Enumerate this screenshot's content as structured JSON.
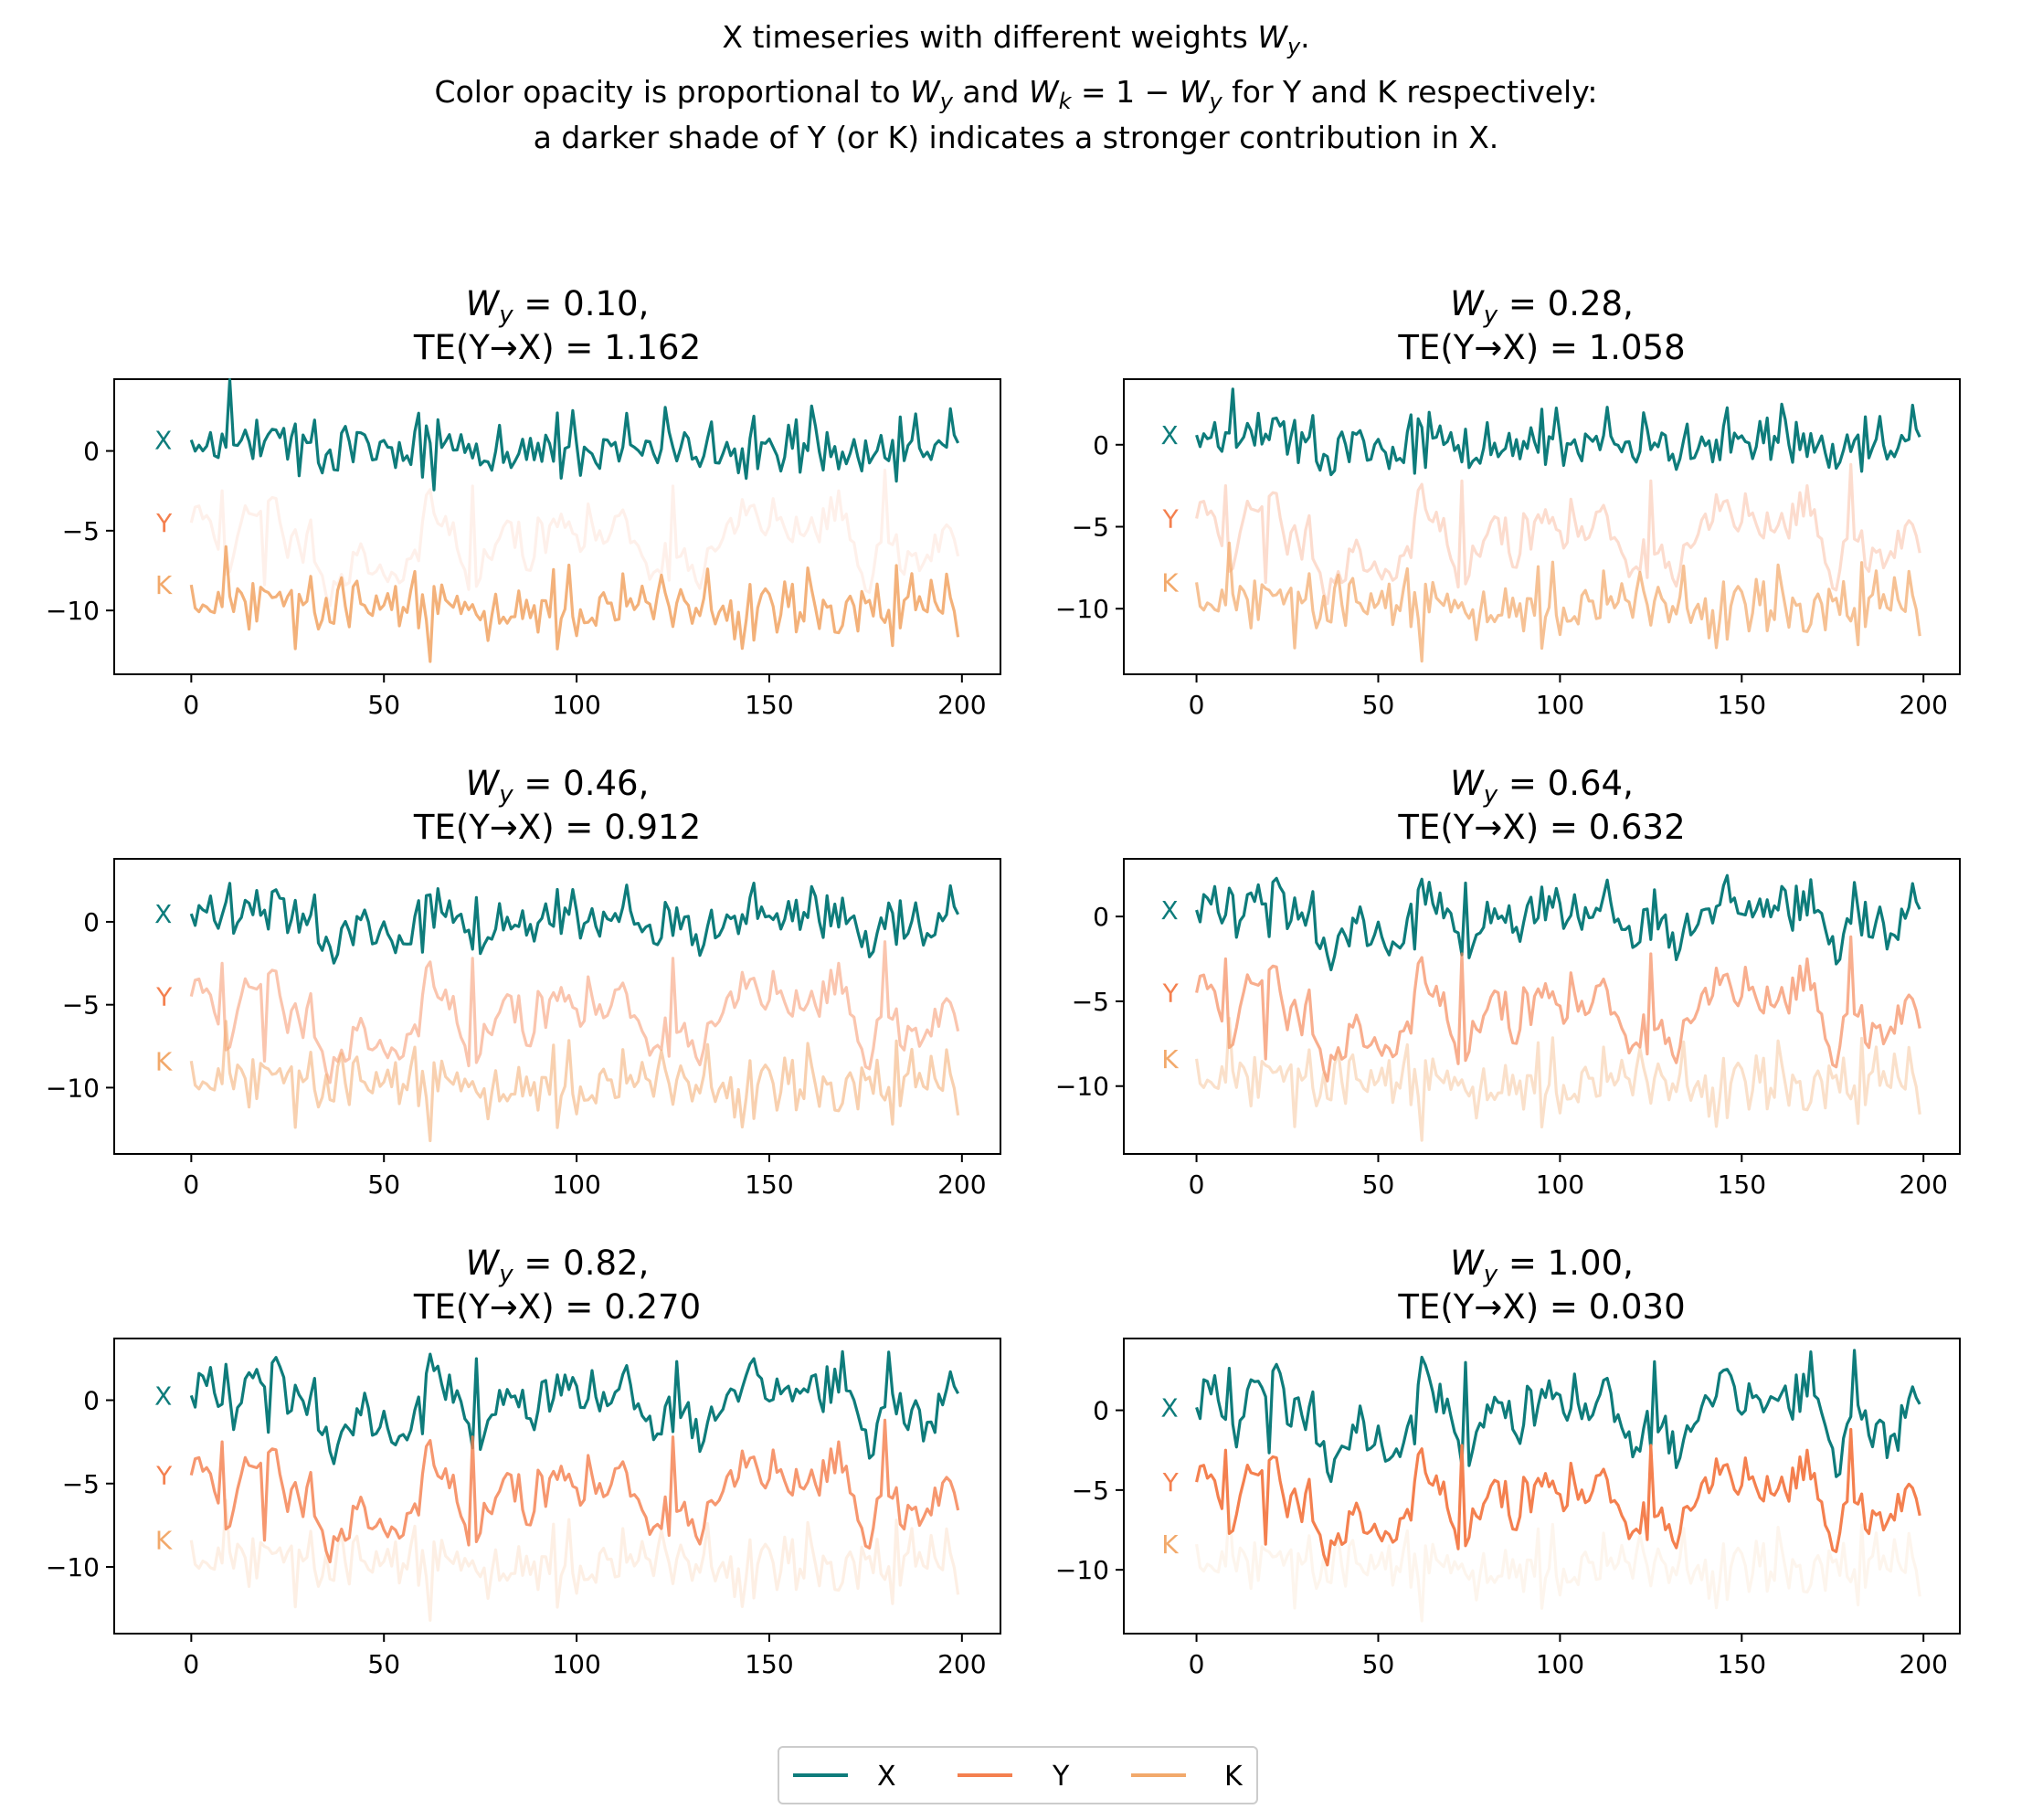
{
  "figure_title": {
    "line1_text": "X timeseries with different weights ",
    "line1_math_base": "W",
    "line1_math_sub": "y",
    "line1_tail": ".",
    "line2_a": "Color opacity is proportional to ",
    "line2_w": "W",
    "line2_wsub": "y",
    "line2_b": " and ",
    "line2_k": "W",
    "line2_ksub": "k",
    "line2_c": " = 1 − ",
    "line2_w2": "W",
    "line2_w2sub": "y",
    "line2_d": " for Y and K respectively:",
    "line3": "a darker shade of Y (or K) indicates a stronger contribution in X."
  },
  "colors": {
    "X": "#0e7c7b",
    "Y": "#f4804f",
    "K": "#f2a96b"
  },
  "chart_data": [
    {
      "type": "line",
      "wy": "0.10",
      "te": "1.162",
      "y_alpha": 0.1,
      "k_alpha": 0.9,
      "title_w": "W",
      "title_sub": "y",
      "title_line1": " = 0.10,",
      "title_line2": "TE(Y→X) = 1.162",
      "xlim": [
        -20,
        210
      ],
      "ylim": [
        -14,
        4.5
      ],
      "yticks": [
        0,
        -5,
        -10
      ],
      "xticks": [
        0,
        50,
        100,
        150,
        200
      ],
      "series_labels": [
        "X",
        "Y",
        "K"
      ]
    },
    {
      "type": "line",
      "wy": "0.28",
      "te": "1.058",
      "y_alpha": 0.28,
      "k_alpha": 0.72,
      "title_w": "W",
      "title_sub": "y",
      "title_line1": " = 0.28,",
      "title_line2": "TE(Y→X) = 1.058",
      "xlim": [
        -20,
        210
      ],
      "ylim": [
        -14,
        4.0
      ],
      "yticks": [
        0,
        -5,
        -10
      ],
      "xticks": [
        0,
        50,
        100,
        150,
        200
      ],
      "series_labels": [
        "X",
        "Y",
        "K"
      ]
    },
    {
      "type": "line",
      "wy": "0.46",
      "te": "0.912",
      "y_alpha": 0.46,
      "k_alpha": 0.54,
      "title_w": "W",
      "title_sub": "y",
      "title_line1": " = 0.46,",
      "title_line2": "TE(Y→X) = 0.912",
      "xlim": [
        -20,
        210
      ],
      "ylim": [
        -14,
        3.8
      ],
      "yticks": [
        0,
        -5,
        -10
      ],
      "xticks": [
        0,
        50,
        100,
        150,
        200
      ],
      "series_labels": [
        "X",
        "Y",
        "K"
      ]
    },
    {
      "type": "line",
      "wy": "0.64",
      "te": "0.632",
      "y_alpha": 0.64,
      "k_alpha": 0.36,
      "title_w": "W",
      "title_sub": "y",
      "title_line1": " = 0.64,",
      "title_line2": "TE(Y→X) = 0.632",
      "xlim": [
        -20,
        210
      ],
      "ylim": [
        -14,
        3.4
      ],
      "yticks": [
        0,
        -5,
        -10
      ],
      "xticks": [
        0,
        50,
        100,
        150,
        200
      ],
      "series_labels": [
        "X",
        "Y",
        "K"
      ]
    },
    {
      "type": "line",
      "wy": "0.82",
      "te": "0.270",
      "y_alpha": 0.82,
      "k_alpha": 0.18,
      "title_w": "W",
      "title_sub": "y",
      "title_line1": " = 0.82,",
      "title_line2": "TE(Y→X) = 0.270",
      "xlim": [
        -20,
        210
      ],
      "ylim": [
        -14,
        3.7
      ],
      "yticks": [
        0,
        -5,
        -10
      ],
      "xticks": [
        0,
        50,
        100,
        150,
        200
      ],
      "series_labels": [
        "X",
        "Y",
        "K"
      ]
    },
    {
      "type": "line",
      "wy": "1.00",
      "te": "0.030",
      "y_alpha": 1.0,
      "k_alpha": 0.05,
      "title_w": "W",
      "title_sub": "y",
      "title_line1": " = 1.00,",
      "title_line2": "TE(Y→X) = 0.030",
      "xlim": [
        -20,
        210
      ],
      "ylim": [
        -14,
        4.5
      ],
      "yticks": [
        0,
        -5,
        -10
      ],
      "xticks": [
        0,
        50,
        100,
        150,
        200
      ],
      "series_labels": [
        "X",
        "Y",
        "K"
      ]
    }
  ],
  "legend": {
    "placement": "bottom-center",
    "entries": [
      "X",
      "Y",
      "K"
    ]
  }
}
